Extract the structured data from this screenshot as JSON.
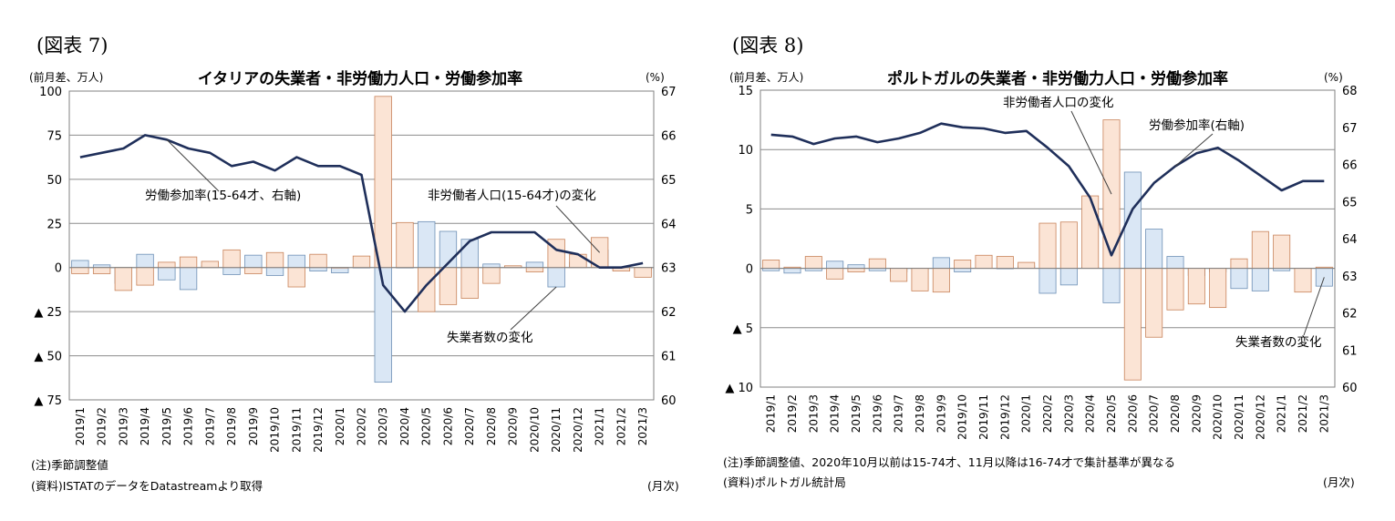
{
  "charts": [
    {
      "figure_label": "(図表 7)",
      "notes": [
        "(注)季節調整値",
        "(資料)ISTATのデータをDatastreamより取得"
      ],
      "unit_right": "(月次)",
      "chart_data": {
        "type": "bar+line",
        "title": "イタリアの失業者・非労働力人口・労働参加率",
        "left_axis_label": "(前月差、万人)",
        "right_axis_label": "(%)",
        "left_ylim": [
          -75,
          100
        ],
        "left_ticks": [
          100,
          75,
          50,
          25,
          0,
          -25,
          -50,
          -75
        ],
        "left_tick_labels": [
          "100",
          "75",
          "50",
          "25",
          "0",
          "▲ 25",
          "▲ 50",
          "▲ 75"
        ],
        "right_ylim": [
          60,
          67
        ],
        "right_ticks": [
          67,
          66,
          65,
          64,
          63,
          62,
          61,
          60
        ],
        "right_tick_labels": [
          "67",
          "66",
          "65",
          "64",
          "63",
          "62",
          "61",
          "60"
        ],
        "categories": [
          "2019/1",
          "2019/2",
          "2019/3",
          "2019/4",
          "2019/5",
          "2019/6",
          "2019/7",
          "2019/8",
          "2019/9",
          "2019/10",
          "2019/11",
          "2019/12",
          "2020/1",
          "2020/2",
          "2020/3",
          "2020/4",
          "2020/5",
          "2020/6",
          "2020/7",
          "2020/8",
          "2020/9",
          "2020/10",
          "2020/11",
          "2020/12",
          "2021/1",
          "2021/2",
          "2021/3"
        ],
        "series": [
          {
            "key": "unemployed",
            "kind": "bar",
            "color": "#dae7f5",
            "stroke": "#6d8fb5",
            "values": [
              4,
              1.5,
              -9,
              7.5,
              -7,
              -12.5,
              1,
              -4,
              7,
              -4.5,
              7,
              -2,
              -3,
              0,
              -65,
              0,
              26,
              20.5,
              16,
              2,
              0.5,
              3,
              -11,
              3,
              10,
              -1.5,
              -1
            ]
          },
          {
            "key": "inactive",
            "kind": "bar",
            "color": "#fbe4d5",
            "stroke": "#c8835a",
            "values": [
              -3.5,
              -3.5,
              -13,
              -10,
              3,
              6,
              3.5,
              10,
              -3.5,
              8.5,
              -11,
              7.5,
              0,
              6.5,
              97,
              25.5,
              -25,
              -21,
              -17.5,
              -9,
              1,
              -2.5,
              16,
              7.5,
              17,
              -2,
              -5.5
            ]
          },
          {
            "key": "participation",
            "kind": "line",
            "axis": "right",
            "color": "#1f2f5a",
            "values": [
              65.5,
              65.6,
              65.7,
              66.0,
              65.9,
              65.7,
              65.6,
              65.3,
              65.4,
              65.2,
              65.5,
              65.3,
              65.3,
              65.1,
              62.6,
              62.0,
              62.6,
              63.1,
              63.6,
              63.8,
              63.8,
              63.8,
              63.4,
              63.3,
              63.0,
              63.0,
              63.1
            ]
          }
        ],
        "annotations": [
          {
            "text": "労働参加率(15-64才、右軸)",
            "target": "participation",
            "index": 4
          },
          {
            "text": "非労働者人口(15-64才)の変化",
            "target": "inactive",
            "index": 24
          },
          {
            "text": "失業者数の変化",
            "target": "unemployed",
            "index": 22
          }
        ]
      }
    },
    {
      "figure_label": "(図表 8)",
      "notes": [
        "(注)季節調整値、2020年10月以前は15-74才、11月以降は16-74才で集計基準が異なる",
        "(資料)ポルトガル統計局"
      ],
      "unit_right": "(月次)",
      "chart_data": {
        "type": "bar+line",
        "title": "ポルトガルの失業者・非労働力人口・労働参加率",
        "left_axis_label": "(前月差、万人)",
        "right_axis_label": "(%)",
        "left_ylim": [
          -10,
          15
        ],
        "left_ticks": [
          15,
          10,
          5,
          0,
          -5,
          -10
        ],
        "left_tick_labels": [
          "15",
          "10",
          "5",
          "0",
          "▲ 5",
          "▲ 10"
        ],
        "right_ylim": [
          60,
          68
        ],
        "right_ticks": [
          68,
          67,
          66,
          65,
          64,
          63,
          62,
          61,
          60
        ],
        "right_tick_labels": [
          "68",
          "67",
          "66",
          "65",
          "64",
          "63",
          "62",
          "61",
          "60"
        ],
        "categories": [
          "2019/1",
          "2019/2",
          "2019/3",
          "2019/4",
          "2019/5",
          "2019/6",
          "2019/7",
          "2019/8",
          "2019/9",
          "2019/10",
          "2019/11",
          "2019/12",
          "2020/1",
          "2020/2",
          "2020/3",
          "2020/4",
          "2020/5",
          "2020/6",
          "2020/7",
          "2020/8",
          "2020/9",
          "2020/10",
          "2020/11",
          "2020/12",
          "2021/1",
          "2021/2",
          "2021/3"
        ],
        "series": [
          {
            "key": "unemployed",
            "kind": "bar",
            "color": "#dae7f5",
            "stroke": "#6d8fb5",
            "values": [
              -0.2,
              -0.4,
              -0.2,
              0.6,
              0.3,
              -0.2,
              -0.3,
              -0.3,
              0.9,
              -0.3,
              0.9,
              0.0,
              0.2,
              -2.1,
              -1.4,
              0.1,
              -2.9,
              8.1,
              3.3,
              1.0,
              -0.6,
              -0.3,
              -1.7,
              -1.9,
              -0.2,
              -0.1,
              -1.5
            ]
          },
          {
            "key": "inactive",
            "kind": "bar",
            "color": "#fbe4d5",
            "stroke": "#c8835a",
            "values": [
              0.7,
              0.1,
              1.0,
              -0.9,
              -0.3,
              0.8,
              -1.1,
              -1.9,
              -2.0,
              0.7,
              1.1,
              1.0,
              0.5,
              3.8,
              3.9,
              6.1,
              12.5,
              -9.4,
              -5.8,
              -3.5,
              -3.0,
              -3.3,
              0.8,
              3.1,
              2.8,
              -2.0,
              0.1
            ]
          },
          {
            "key": "participation",
            "kind": "line",
            "axis": "right",
            "color": "#1f2f5a",
            "values": [
              66.8,
              66.75,
              66.55,
              66.7,
              66.75,
              66.6,
              66.7,
              66.85,
              67.1,
              67.0,
              66.97,
              66.85,
              66.9,
              66.45,
              65.95,
              65.1,
              63.55,
              64.8,
              65.5,
              65.95,
              66.3,
              66.45,
              66.1,
              65.7,
              65.3,
              65.55,
              65.55
            ]
          }
        ],
        "annotations": [
          {
            "text": "非労働者人口の変化",
            "target": "inactive",
            "index": 16
          },
          {
            "text": "労働参加率(右軸)",
            "target": "participation",
            "index": 19
          },
          {
            "text": "失業者数の変化",
            "target": "unemployed",
            "index": 26
          }
        ]
      }
    }
  ]
}
